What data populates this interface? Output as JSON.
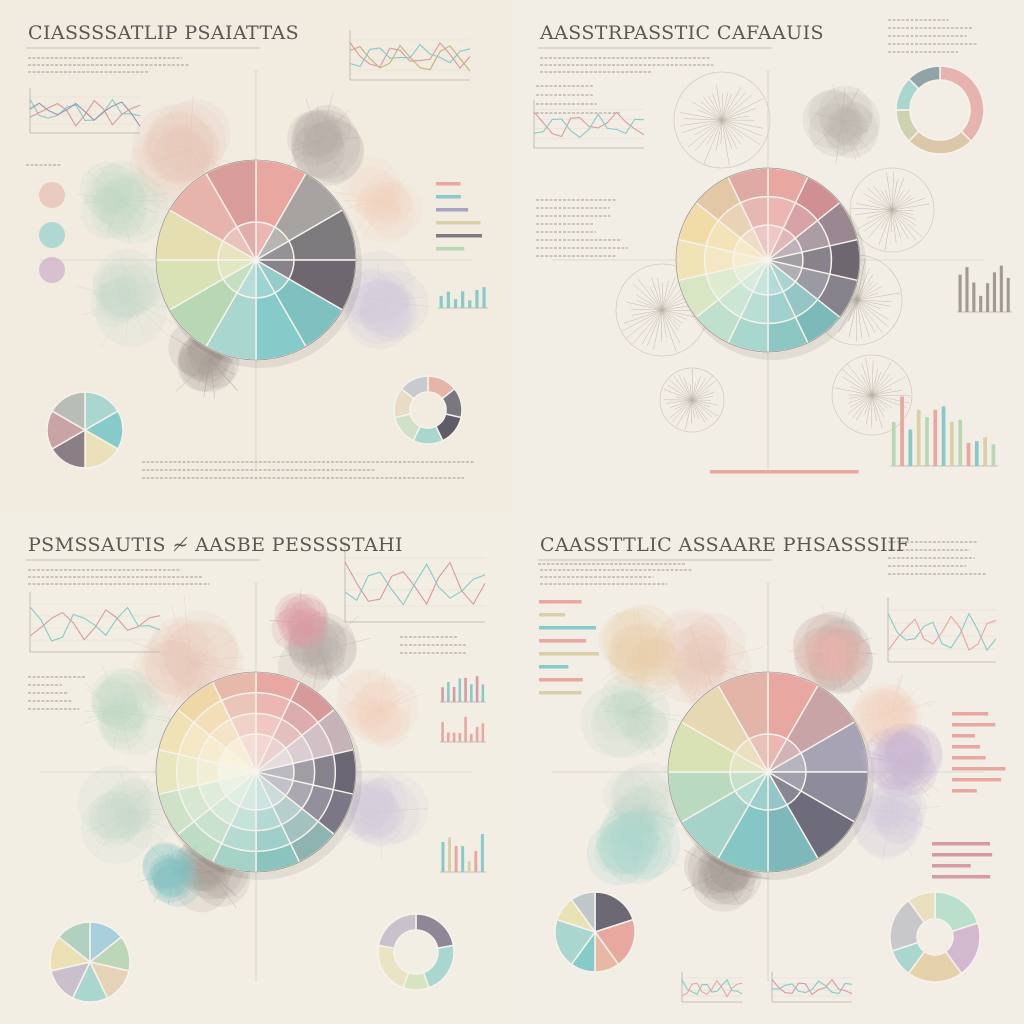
{
  "panels": [
    {
      "title": "CIASSSSATLIP PSAIATTAS",
      "bg": "#f1ebe0",
      "wheel": {
        "rings": 2,
        "segments": 12,
        "colors": [
          "#e8a7a1",
          "#a7a3a0",
          "#7c7a7c",
          "#6e6770",
          "#7fc0c0",
          "#86cbc9",
          "#a9d6cf",
          "#b8d8b4",
          "#d9e2b5",
          "#e4deb0",
          "#e7b4ab",
          "#d99d9b"
        ]
      },
      "pie": {
        "values": [
          1,
          1,
          1,
          1,
          1,
          1
        ],
        "colors": [
          "#a9d6cf",
          "#86cbc9",
          "#eae1b8",
          "#8b7f85",
          "#c9a4a6",
          "#b8bdb8"
        ]
      },
      "donut": {
        "values": [
          1,
          1,
          1,
          1,
          1,
          1,
          1
        ],
        "colors": [
          "#e8b4a8",
          "#7b7780",
          "#5f5b67",
          "#a9d6cf",
          "#cfe1c6",
          "#e9dcc4",
          "#c7cbd0"
        ]
      }
    },
    {
      "title": "AASSTRPASSTIC CAFAAUIS",
      "bg": "#f3eee5",
      "wheel": {
        "rings": 3,
        "segments": 14,
        "colors": [
          "#e8a7a1",
          "#d08f92",
          "#9a8791",
          "#6e6770",
          "#85828c",
          "#7bbab8",
          "#8cc7c3",
          "#a8d7cd",
          "#bfe0cc",
          "#d8e6c3",
          "#f0e3b6",
          "#f1dca8",
          "#e4c8a5",
          "#e0a9a4"
        ]
      },
      "pie": {
        "values": [
          1,
          1,
          1,
          1,
          1,
          1
        ],
        "colors": [
          "#9ca88e",
          "#a9d6cf",
          "#bfc9b0",
          "#7b7483",
          "#b59c92",
          "#d4cbb1"
        ]
      },
      "donut": {
        "values": [
          3,
          2,
          1,
          1,
          1
        ],
        "colors": [
          "#e7b3ae",
          "#dcc7a8",
          "#cfd2b0",
          "#a9d6cf",
          "#8fa3a8"
        ]
      }
    },
    {
      "title": "PSMSSAUTIS ≁ AASBE PESSSSTAHI",
      "bg": "#f3eee4",
      "wheel": {
        "rings": 4,
        "segments": 14,
        "colors": [
          "#e8a7a1",
          "#d69a9a",
          "#c7b2b8",
          "#6a6673",
          "#7b7787",
          "#8fb3b0",
          "#89c4be",
          "#a4d2c7",
          "#bcdcc4",
          "#cfe2c7",
          "#e8e6bf",
          "#f1e2b6",
          "#f0d7a8",
          "#e7b9a8"
        ]
      },
      "pie": {
        "values": [
          1,
          1,
          1,
          1,
          1,
          1,
          1
        ],
        "colors": [
          "#a7cfdc",
          "#bcd7b8",
          "#e6d3b7",
          "#a9d6cf",
          "#c9c0cc",
          "#eae0b4",
          "#b0d0c0"
        ]
      },
      "donut": {
        "values": [
          2,
          2,
          1,
          2,
          2
        ],
        "colors": [
          "#8e8796",
          "#a9d6cf",
          "#d7e4c2",
          "#eae4c4",
          "#c8c2cb"
        ]
      }
    },
    {
      "title": "CAASSTTLIC ASSAARE PHSASSSIIF",
      "bg": "#f2ede5",
      "wheel": {
        "rings": 2,
        "segments": 12,
        "colors": [
          "#e8a7a1",
          "#c9a4a6",
          "#a7a3b4",
          "#8e8b9a",
          "#6e6c7a",
          "#7fb8bb",
          "#86c6c5",
          "#a6d3c9",
          "#b9dabe",
          "#d9e2b5",
          "#e6d8b2",
          "#e3b5a8"
        ]
      },
      "pie": {
        "values": [
          2,
          2,
          1,
          1,
          2,
          1,
          1
        ],
        "colors": [
          "#6c6874",
          "#e7a8a0",
          "#e7b9a4",
          "#86cbc9",
          "#a9d6cf",
          "#e8e2b4",
          "#bfc7c8"
        ]
      },
      "donut": {
        "values": [
          2,
          2,
          2,
          1,
          2,
          1
        ],
        "colors": [
          "#b9e0cc",
          "#d2b9d0",
          "#e5d2aa",
          "#a9d6cf",
          "#c8c7ca",
          "#e9dfbe"
        ]
      }
    }
  ]
}
